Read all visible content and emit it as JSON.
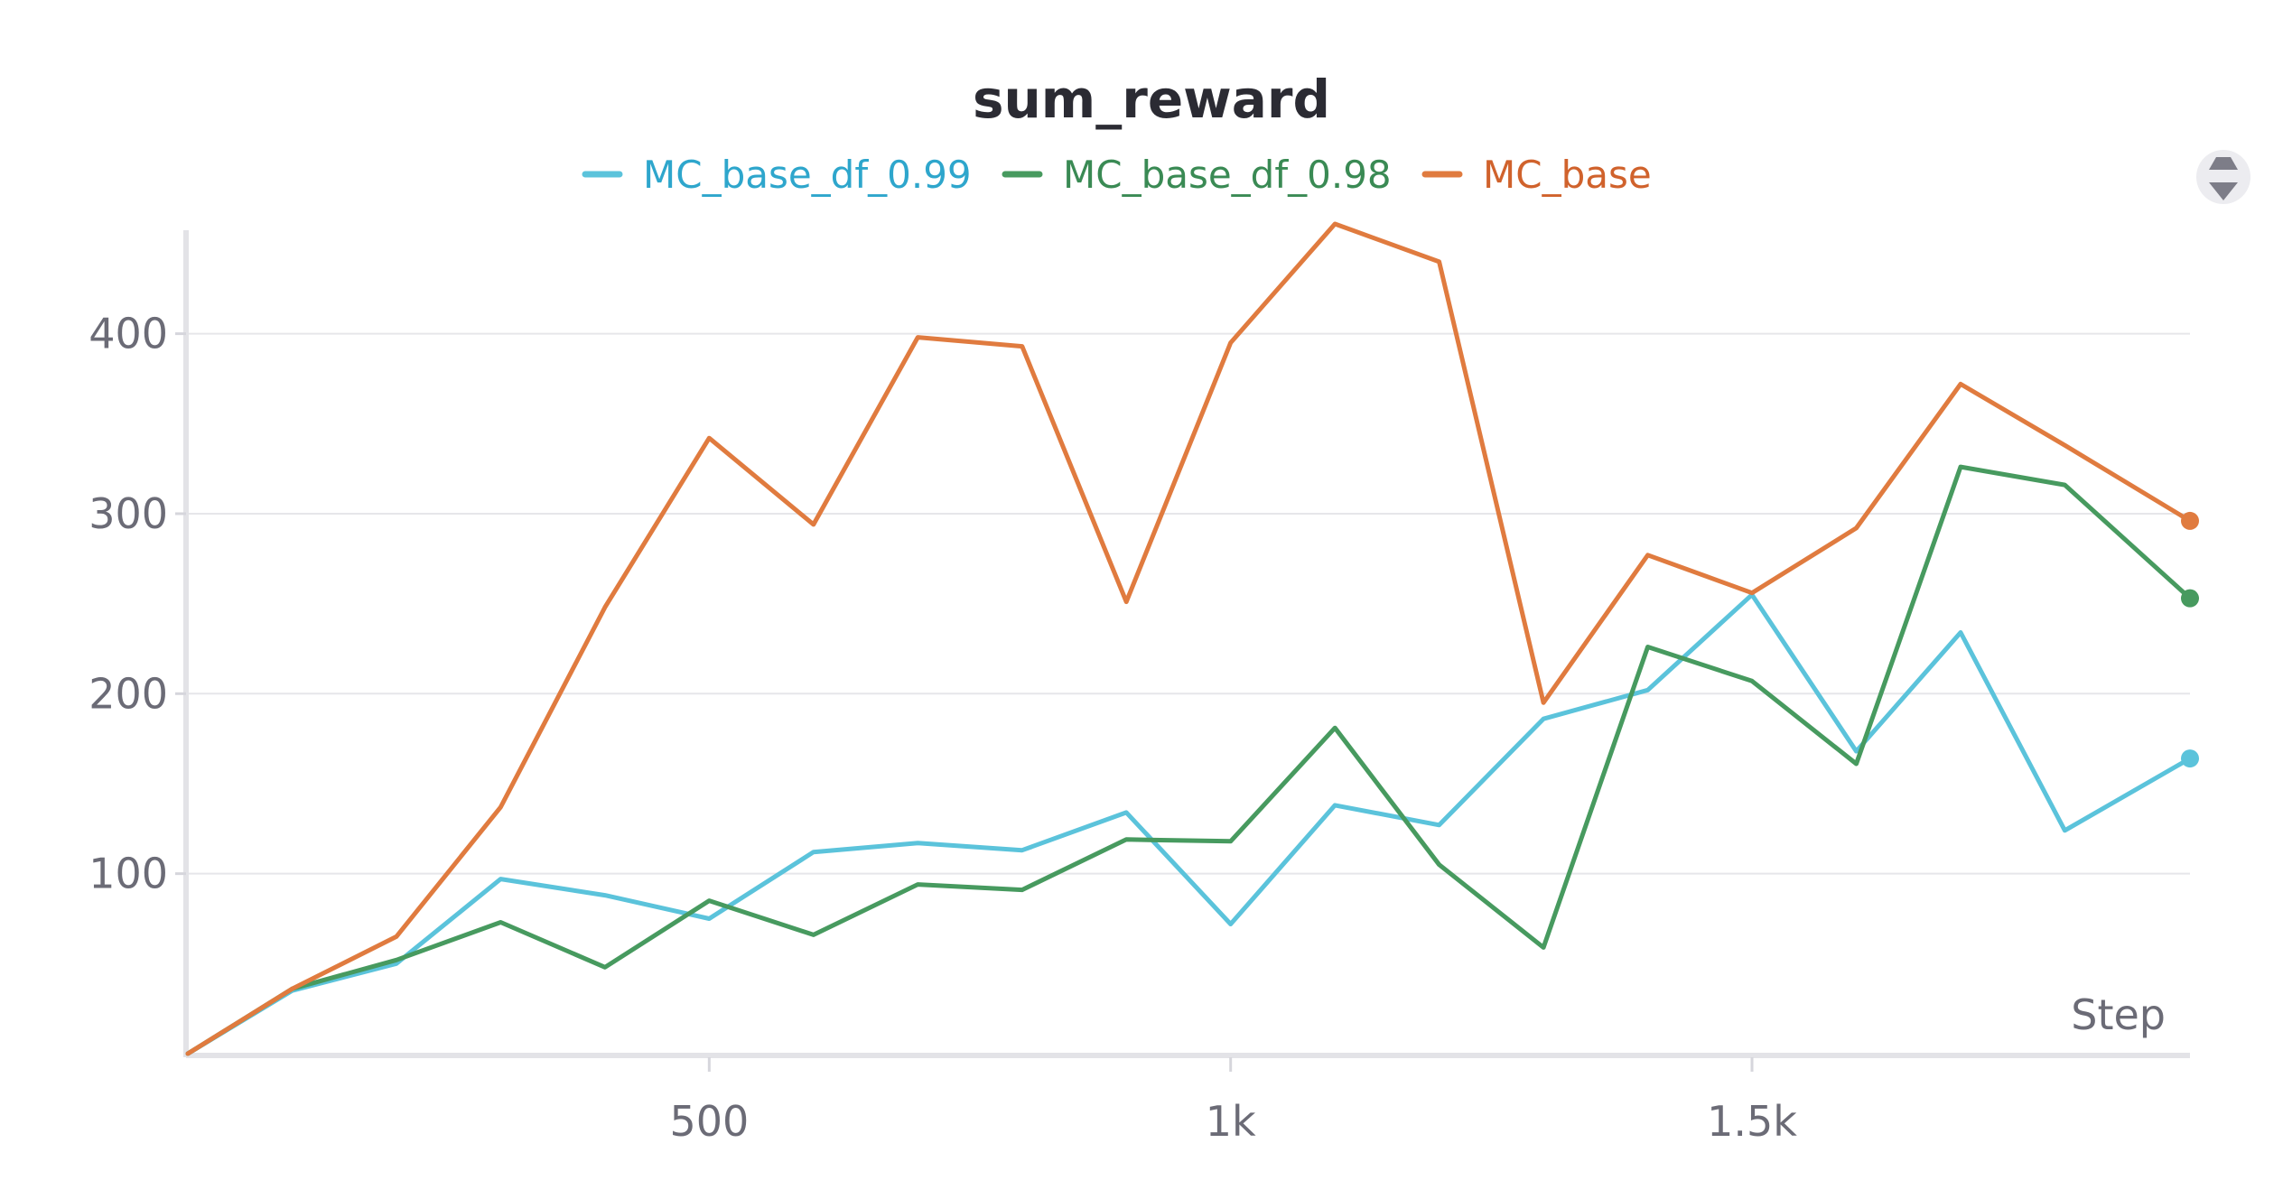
{
  "chart_data": {
    "type": "line",
    "title": "sum_reward",
    "xlabel": "Step",
    "ylabel": "",
    "xlim": [
      0,
      1920
    ],
    "ylim": [
      0,
      460
    ],
    "x_ticks": [
      {
        "value": 500,
        "label": "500"
      },
      {
        "value": 1000,
        "label": "1k"
      },
      {
        "value": 1500,
        "label": "1.5k"
      }
    ],
    "y_ticks": [
      {
        "value": 100,
        "label": "100"
      },
      {
        "value": 200,
        "label": "200"
      },
      {
        "value": 300,
        "label": "300"
      },
      {
        "value": 400,
        "label": "400"
      }
    ],
    "grid": true,
    "legend_position": "top-center",
    "x": [
      0,
      100,
      200,
      300,
      400,
      500,
      600,
      700,
      800,
      900,
      1000,
      1100,
      1200,
      1300,
      1400,
      1500,
      1600,
      1700,
      1800,
      1920
    ],
    "series": [
      {
        "name": "MC_base_df_0.99",
        "color": "#5bc3db",
        "legend_text_color": "#2ea6cc",
        "values": [
          0,
          35,
          50,
          97,
          88,
          75,
          112,
          117,
          113,
          134,
          72,
          138,
          127,
          186,
          202,
          255,
          168,
          234,
          124,
          164
        ]
      },
      {
        "name": "MC_base_df_0.98",
        "color": "#479a5f",
        "legend_text_color": "#3a8a54",
        "values": [
          0,
          36,
          52,
          73,
          48,
          85,
          66,
          94,
          91,
          119,
          118,
          181,
          105,
          59,
          226,
          207,
          161,
          326,
          316,
          253
        ]
      },
      {
        "name": "MC_base",
        "color": "#e07b3f",
        "legend_text_color": "#d0622c",
        "values": [
          0,
          36,
          65,
          137,
          248,
          342,
          294,
          398,
          393,
          251,
          395,
          461,
          440,
          195,
          277,
          256,
          292,
          372,
          338,
          296
        ]
      }
    ]
  },
  "icons": {
    "legend_scroll": "legend-scroll-icon"
  }
}
